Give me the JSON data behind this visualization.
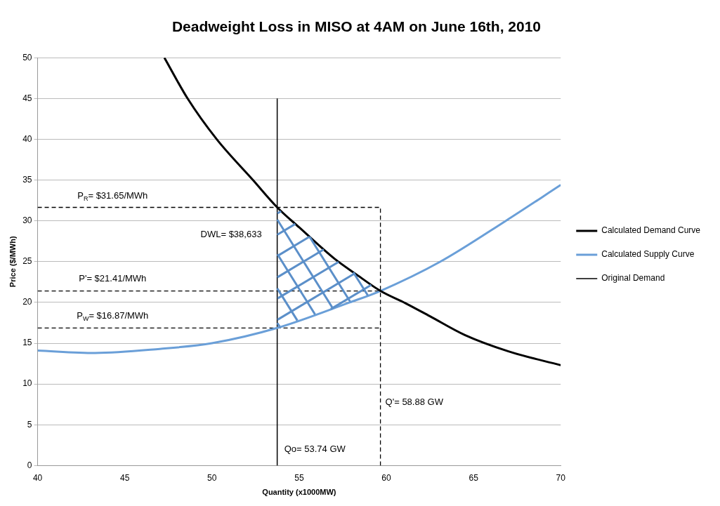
{
  "chart_data": {
    "type": "line",
    "title": "Deadweight Loss in MISO at 4AM on June 16th, 2010",
    "xlabel": "Quantity (x1000MW)",
    "ylabel": "Price ($/MWh)",
    "xlim": [
      40,
      70
    ],
    "xticks": [
      40,
      45,
      50,
      55,
      60,
      65,
      70
    ],
    "ylim": [
      0,
      50
    ],
    "yticks": [
      0,
      5,
      10,
      15,
      20,
      25,
      30,
      35,
      40,
      45,
      50
    ],
    "grid": "y",
    "legend": "right",
    "marker": "none",
    "series": [
      {
        "name": "Calculated Demand Curve",
        "color": "#000000",
        "line_style": "solid",
        "x": [
          47.27,
          48.6,
          50.27,
          52.35,
          53.74,
          55,
          57,
          58.3,
          59.66,
          61.1,
          62.5,
          64.5,
          67,
          70
        ],
        "values": [
          50,
          45,
          40,
          35,
          31.65,
          29.2,
          25.4,
          23.4,
          21.41,
          19.9,
          18.3,
          16,
          14,
          12.3
        ]
      },
      {
        "name": "Calculated Supply Curve",
        "color": "#6a9fd8",
        "line_style": "solid",
        "x": [
          40,
          43.3,
          47,
          50,
          53.74,
          57.9,
          59.66,
          63.1,
          66.85,
          70
        ],
        "values": [
          14.1,
          13.8,
          14.3,
          15,
          16.87,
          20,
          21.41,
          25,
          30,
          34.4
        ]
      },
      {
        "name": "Original Demand",
        "color": "#000000",
        "line_style": "solid",
        "x": [
          53.74,
          53.74
        ],
        "values": [
          0,
          45
        ]
      },
      {
        "color": "#000000",
        "line_style": "dashed",
        "x": [
          40,
          59.66
        ],
        "values": [
          31.65,
          31.65
        ]
      },
      {
        "color": "#000000",
        "line_style": "dashed",
        "x": [
          40,
          59.66
        ],
        "values": [
          21.41,
          21.41
        ]
      },
      {
        "color": "#000000",
        "line_style": "dashed",
        "x": [
          40,
          59.66
        ],
        "values": [
          16.87,
          16.87
        ]
      },
      {
        "color": "#000000",
        "line_style": "dashed",
        "x": [
          59.66,
          59.66
        ],
        "values": [
          0,
          31.65
        ]
      }
    ],
    "annotations": [
      "P$_{R}$= $31.65/MWh",
      "DWL= $38,633",
      "P'= $21.41/MWh",
      "P$_{W}$= $16.87/MWh",
      "Q'= 58.88 GW",
      "Qo= 53.74 GW"
    ]
  }
}
